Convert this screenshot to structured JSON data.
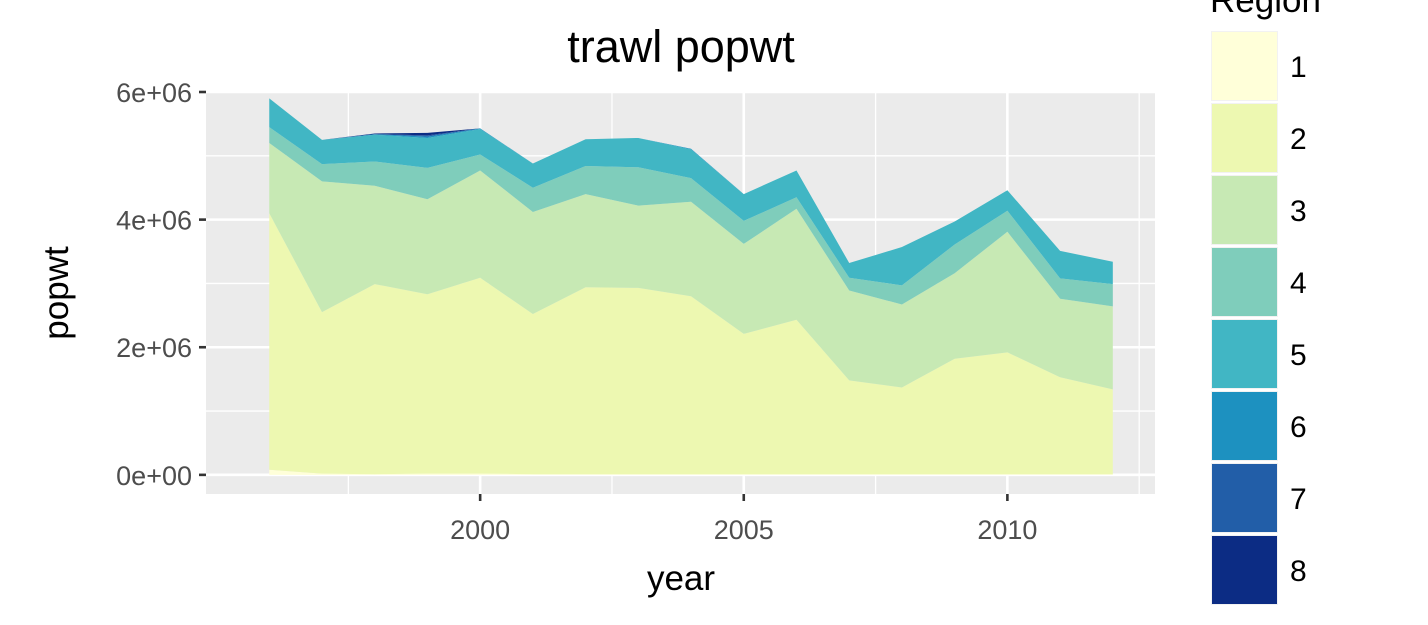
{
  "chart_data": {
    "type": "area",
    "stacked": true,
    "title": "trawl popwt",
    "xlabel": "year",
    "ylabel": "popwt",
    "x": [
      1996,
      1997,
      1998,
      1999,
      2000,
      2001,
      2002,
      2003,
      2004,
      2005,
      2006,
      2007,
      2008,
      2009,
      2010,
      2011,
      2012
    ],
    "xlim": [
      1994.8,
      2012.8
    ],
    "ylim": [
      -300000,
      6000000
    ],
    "x_ticks": [
      2000,
      2005,
      2010
    ],
    "x_tick_labels": [
      "2000",
      "2005",
      "2010"
    ],
    "y_ticks": [
      0,
      2000000,
      4000000,
      6000000
    ],
    "y_tick_labels": [
      "0e+00",
      "2e+06",
      "4e+06",
      "6e+06"
    ],
    "grid": true,
    "legend": {
      "title": "Region",
      "position": "right",
      "entries": [
        "1",
        "2",
        "3",
        "4",
        "5",
        "6",
        "7",
        "8"
      ]
    },
    "series": [
      {
        "name": "1",
        "color": "#ffffd9",
        "values": [
          80000,
          20000,
          10000,
          20000,
          20000,
          10000,
          10000,
          10000,
          10000,
          10000,
          10000,
          10000,
          10000,
          10000,
          10000,
          10000,
          10000
        ]
      },
      {
        "name": "2",
        "color": "#edf8b1",
        "values": [
          4020000,
          2530000,
          2980000,
          2810000,
          3070000,
          2510000,
          2930000,
          2920000,
          2790000,
          2200000,
          2420000,
          1470000,
          1360000,
          1810000,
          1910000,
          1520000,
          1330000
        ]
      },
      {
        "name": "3",
        "color": "#c7e9b4",
        "values": [
          1100000,
          2050000,
          1540000,
          1490000,
          1680000,
          1600000,
          1460000,
          1290000,
          1480000,
          1410000,
          1740000,
          1410000,
          1300000,
          1340000,
          1890000,
          1230000,
          1300000
        ]
      },
      {
        "name": "4",
        "color": "#7fcdbb",
        "values": [
          250000,
          270000,
          380000,
          490000,
          250000,
          380000,
          440000,
          600000,
          370000,
          360000,
          180000,
          200000,
          300000,
          450000,
          330000,
          320000,
          350000
        ]
      },
      {
        "name": "5",
        "color": "#41b6c4",
        "values": [
          450000,
          380000,
          420000,
          470000,
          400000,
          380000,
          420000,
          460000,
          450000,
          420000,
          420000,
          230000,
          600000,
          360000,
          320000,
          430000,
          350000
        ]
      },
      {
        "name": "6",
        "color": "#1d91c0",
        "values": [
          0,
          0,
          10000,
          20000,
          10000,
          0,
          0,
          0,
          10000,
          0,
          0,
          0,
          0,
          0,
          0,
          0,
          0
        ]
      },
      {
        "name": "7",
        "color": "#225ea8",
        "values": [
          0,
          0,
          0,
          20000,
          0,
          0,
          0,
          0,
          0,
          0,
          0,
          0,
          0,
          0,
          0,
          0,
          0
        ]
      },
      {
        "name": "8",
        "color": "#0c2c84",
        "values": [
          0,
          0,
          10000,
          40000,
          0,
          0,
          0,
          0,
          0,
          0,
          0,
          0,
          0,
          0,
          0,
          0,
          0
        ]
      }
    ]
  }
}
